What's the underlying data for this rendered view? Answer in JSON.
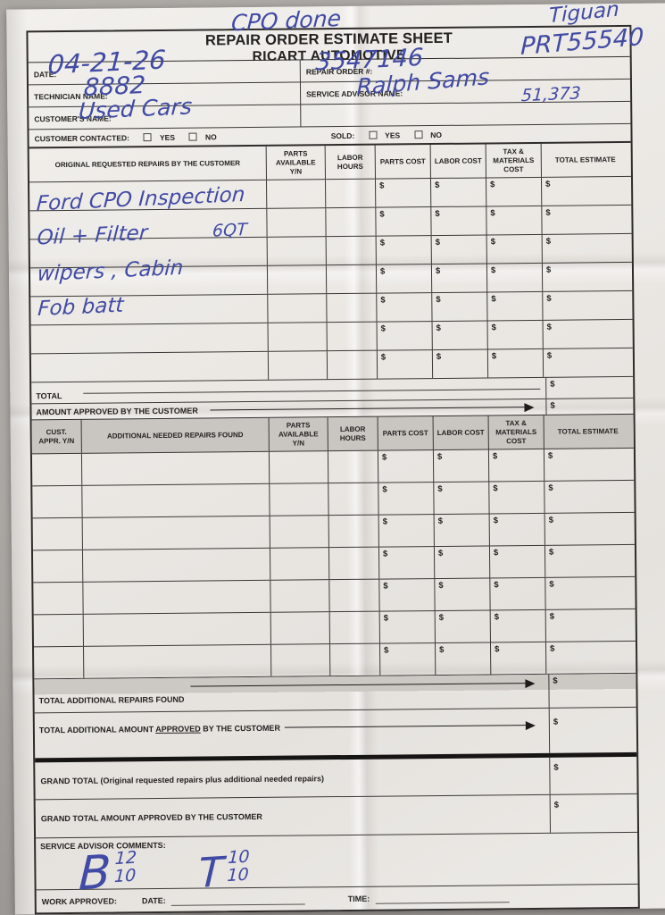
{
  "form": {
    "currency": "$"
  },
  "annotations": {
    "top_center": "CPO done",
    "vehicle": "Tiguan",
    "stock_code": "PRT55540",
    "mileage": "51,373"
  },
  "title": {
    "line1": "REPAIR ORDER ESTIMATE SHEET",
    "line2": "RICART AUTOMOTIVE"
  },
  "info": {
    "date_label": "DATE:",
    "date_value": "04-21-26",
    "repair_order_label": "REPAIR ORDER #:",
    "repair_order_value": "3547146",
    "technician_label": "TECHNICIAN NAME:",
    "technician_value": "8882",
    "advisor_label": "SERVICE ADVISOR NAME:",
    "advisor_value": "Ralph Sams",
    "customer_label": "CUSTOMER'S NAME:",
    "customer_value": "Used Cars"
  },
  "contact_row": {
    "contacted_label": "CUSTOMER CONTACTED:",
    "sold_label": "SOLD:",
    "yes_label": "YES",
    "no_label": "NO"
  },
  "table1": {
    "headers": {
      "description": "ORIGINAL REQUESTED REPAIRS BY THE CUSTOMER",
      "parts_available": "PARTS AVAILABLE Y/N",
      "labor_hours": "LABOR HOURS",
      "parts_cost": "PARTS COST",
      "labor_cost": "LABOR COST",
      "tax_materials": "TAX & MATERIALS COST",
      "total_estimate": "TOTAL ESTIMATE"
    },
    "row_count": 7,
    "handwritten_repairs": [
      {
        "text": "Ford CPO Inspection",
        "note": ""
      },
      {
        "text": "Oil + Filter",
        "note": "6QT"
      },
      {
        "text": "wipers , Cabin",
        "note": ""
      },
      {
        "text": "Fob batt",
        "note": ""
      }
    ],
    "total_label": "TOTAL",
    "amount_approved_label": "AMOUNT APPROVED BY THE CUSTOMER"
  },
  "table2": {
    "headers": {
      "cust_appr": "CUST. APPR. Y/N",
      "description": "ADDITIONAL NEEDED REPAIRS FOUND",
      "parts_available": "PARTS AVAILABLE Y/N",
      "labor_hours": "LABOR HOURS",
      "parts_cost": "PARTS COST",
      "labor_cost": "LABOR COST",
      "tax_materials": "TAX & MATERIALS COST",
      "total_estimate": "TOTAL ESTIMATE"
    },
    "row_count": 7,
    "total_additional_label": "TOTAL ADDITIONAL REPAIRS FOUND",
    "total_additional_approved_prefix": "TOTAL ADDITIONAL AMOUNT ",
    "total_additional_approved_underlined": "APPROVED",
    "total_additional_approved_suffix": " BY THE CUSTOMER"
  },
  "grand": {
    "grand_total_label": "GRAND TOTAL (Original requested repairs plus additional needed repairs)",
    "grand_total_approved_label": "GRAND TOTAL AMOUNT APPROVED BY THE CUSTOMER"
  },
  "comments": {
    "label": "SERVICE ADVISOR COMMENTS:",
    "b_letter": "B",
    "b_top": "12",
    "b_bottom": "10",
    "t_letter": "T",
    "t_top": "10",
    "t_bottom": "10"
  },
  "footer": {
    "work_approved_label": "WORK APPROVED:",
    "date_label": "DATE:",
    "time_label": "TIME:"
  }
}
